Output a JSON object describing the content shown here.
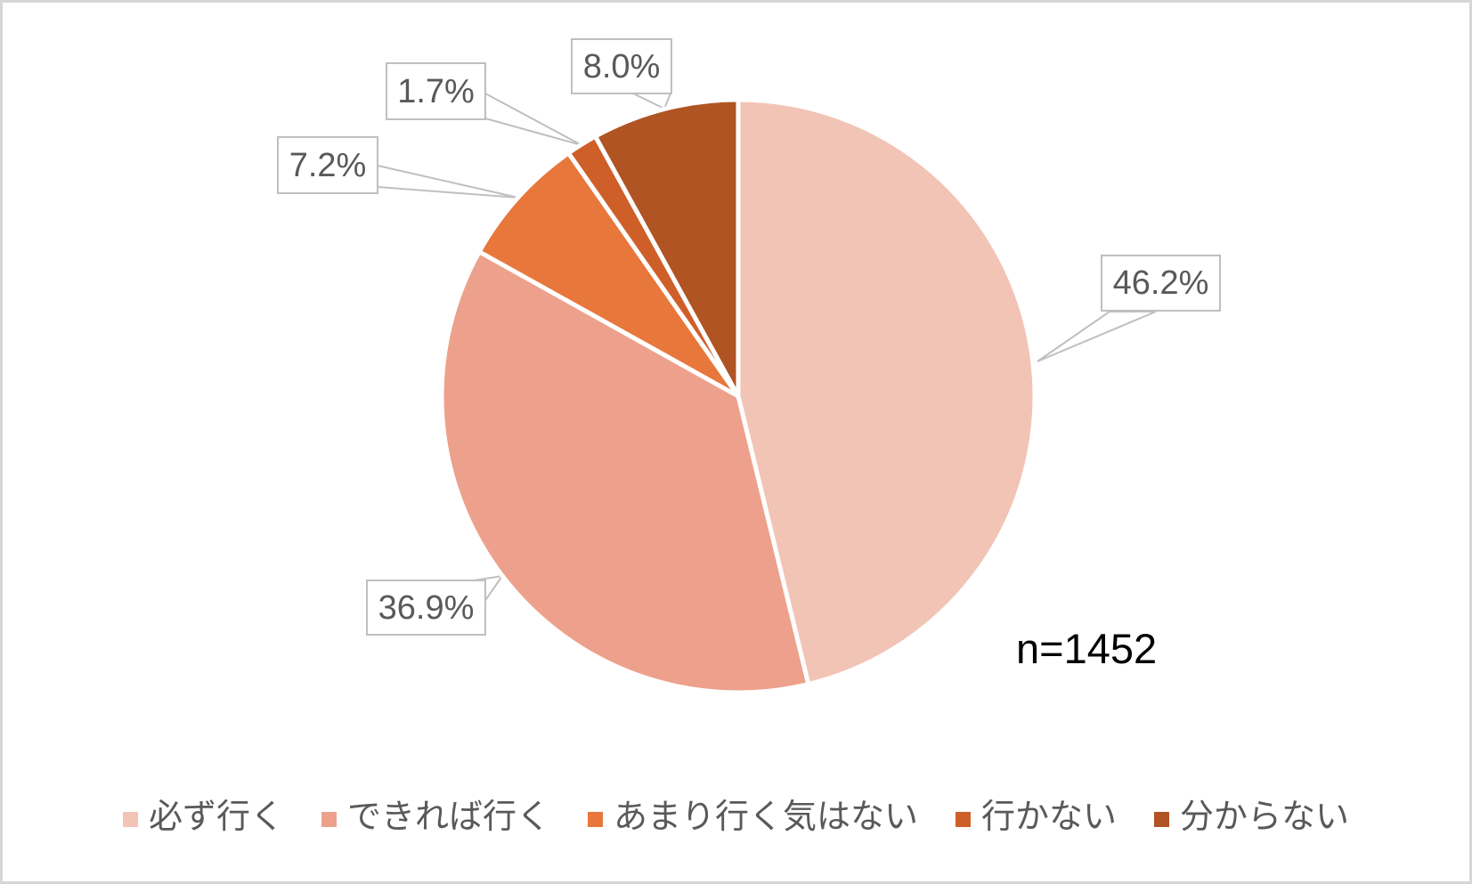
{
  "chart_data": {
    "type": "pie",
    "title": "",
    "sample_label": "n=1452",
    "legend_position": "bottom",
    "start_angle_deg": 0,
    "direction": "clockwise",
    "slice_border_color": "#ffffff",
    "callout_border_color": "#bfbfbf",
    "label_text_color": "#595959",
    "slices": [
      {
        "label": "必ず行く",
        "value": 46.2,
        "display": "46.2%",
        "color": "#F2C4B6"
      },
      {
        "label": "できれば行く",
        "value": 36.9,
        "display": "36.9%",
        "color": "#EDA18C"
      },
      {
        "label": "あまり行く気はない",
        "value": 7.2,
        "display": "7.2%",
        "color": "#E8773B"
      },
      {
        "label": "行かない",
        "value": 1.7,
        "display": "1.7%",
        "color": "#CE5F29"
      },
      {
        "label": "分からない",
        "value": 8.0,
        "display": "8.0%",
        "color": "#B05423"
      }
    ]
  }
}
